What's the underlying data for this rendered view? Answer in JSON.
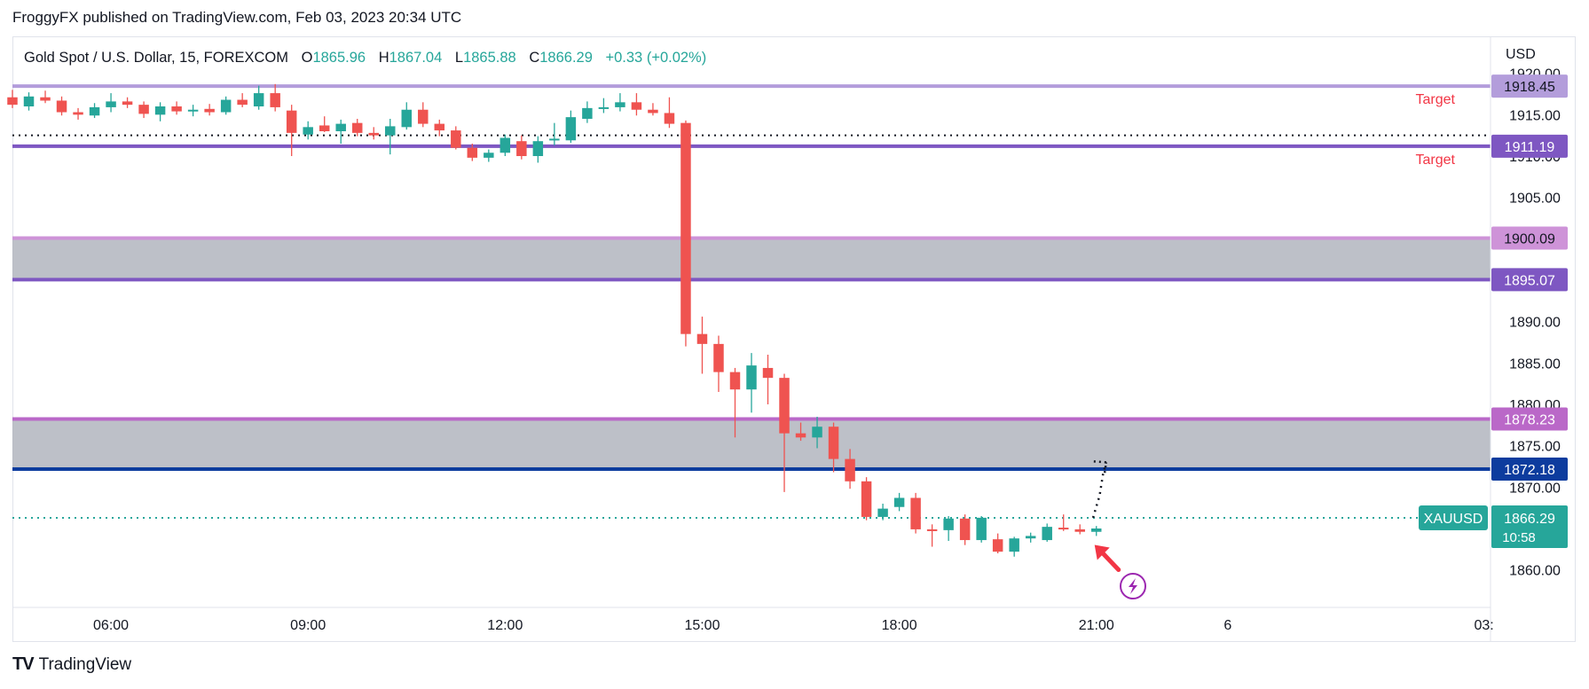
{
  "publisher_line": "FroggyFX published on TradingView.com, Feb 03, 2023 20:34 UTC",
  "brand": {
    "logo_text": "TV",
    "name": "TradingView"
  },
  "colors": {
    "up": "#26a69a",
    "down": "#ef5350",
    "purple_line": "#7e57c2",
    "light_purple_line": "#b39ddb",
    "zone_fill": "#b2b5be",
    "target_text": "#f23645",
    "price_bg": "#26a69a",
    "navy_label": "#1848cc"
  },
  "chart_data": {
    "type": "candlestick",
    "symbol_header": {
      "name": "Gold Spot / U.S. Dollar, 15, FOREXCOM",
      "O_label": "O",
      "O": "1865.96",
      "H_label": "H",
      "H": "1867.04",
      "L_label": "L",
      "L": "1865.88",
      "C_label": "C",
      "C": "1866.29",
      "change": "+0.33 (+0.02%)"
    },
    "currency": "USD",
    "ylim": [
      1856,
      1920.5
    ],
    "xlim": [
      4.5,
      27.0
    ],
    "y_ticks": [
      "1920.00",
      "1915.00",
      "1910.00",
      "1905.00",
      "1900.00",
      "1895.00",
      "1890.00",
      "1885.00",
      "1880.00",
      "1875.00",
      "1870.00",
      "1865.00",
      "1860.00"
    ],
    "x_ticks": [
      {
        "label": "06:00",
        "x": 6.0
      },
      {
        "label": "09:00",
        "x": 9.0
      },
      {
        "label": "12:00",
        "x": 12.0
      },
      {
        "label": "15:00",
        "x": 15.0
      },
      {
        "label": "18:00",
        "x": 18.0
      },
      {
        "label": "21:00",
        "x": 21.0
      },
      {
        "label": "6",
        "x": 23.0
      },
      {
        "label": "03:",
        "x": 26.9
      }
    ],
    "levels": [
      {
        "price": 1918.45,
        "label": "1918.45",
        "color": "#b39ddb",
        "text_color": "#131722",
        "annotation": "Target"
      },
      {
        "price": 1911.19,
        "label": "1911.19",
        "color": "#7e57c2",
        "text_color": "#ffffff",
        "annotation": "Target"
      },
      {
        "price": 1900.09,
        "label": "1900.09",
        "color": "#ce93d8",
        "text_color": "#131722",
        "annotation": ""
      },
      {
        "price": 1895.07,
        "label": "1895.07",
        "color": "#7e57c2",
        "text_color": "#ffffff",
        "annotation": ""
      },
      {
        "price": 1878.23,
        "label": "1878.23",
        "color": "#ba68c8",
        "text_color": "#ffffff",
        "annotation": ""
      },
      {
        "price": 1872.18,
        "label": "1872.18",
        "color": "#0d3c9e",
        "text_color": "#ffffff",
        "annotation": ""
      }
    ],
    "zones": [
      {
        "from": 1895.07,
        "to": 1900.09
      },
      {
        "from": 1872.18,
        "to": 1878.23
      }
    ],
    "dotted_level": 1912.5,
    "current_price": {
      "symbol": "XAUUSD",
      "price": "1866.29",
      "countdown": "10:58",
      "value": 1866.29
    },
    "projection": [
      [
        20.95,
        1866.3
      ],
      [
        21.05,
        1869.0
      ],
      [
        21.1,
        1871.5
      ],
      [
        21.15,
        1873.0
      ]
    ],
    "candles": [
      {
        "x": 4.5,
        "o": 1917.1,
        "h": 1918.0,
        "l": 1915.8,
        "c": 1916.2
      },
      {
        "x": 4.75,
        "o": 1916.0,
        "h": 1917.7,
        "l": 1915.5,
        "c": 1917.2
      },
      {
        "x": 5.0,
        "o": 1917.1,
        "h": 1917.9,
        "l": 1916.4,
        "c": 1916.7
      },
      {
        "x": 5.25,
        "o": 1916.7,
        "h": 1917.2,
        "l": 1914.9,
        "c": 1915.3
      },
      {
        "x": 5.5,
        "o": 1915.3,
        "h": 1915.8,
        "l": 1914.4,
        "c": 1915.0
      },
      {
        "x": 5.75,
        "o": 1914.9,
        "h": 1916.4,
        "l": 1914.6,
        "c": 1915.9
      },
      {
        "x": 6.0,
        "o": 1915.9,
        "h": 1917.6,
        "l": 1915.3,
        "c": 1916.6
      },
      {
        "x": 6.25,
        "o": 1916.6,
        "h": 1917.1,
        "l": 1915.8,
        "c": 1916.2
      },
      {
        "x": 6.5,
        "o": 1916.2,
        "h": 1916.6,
        "l": 1914.6,
        "c": 1915.1
      },
      {
        "x": 6.75,
        "o": 1915.0,
        "h": 1916.5,
        "l": 1914.2,
        "c": 1916.0
      },
      {
        "x": 7.0,
        "o": 1916.0,
        "h": 1916.6,
        "l": 1915.0,
        "c": 1915.4
      },
      {
        "x": 7.25,
        "o": 1915.4,
        "h": 1916.2,
        "l": 1914.8,
        "c": 1915.6
      },
      {
        "x": 7.5,
        "o": 1915.7,
        "h": 1916.3,
        "l": 1914.9,
        "c": 1915.3
      },
      {
        "x": 7.75,
        "o": 1915.3,
        "h": 1917.2,
        "l": 1915.0,
        "c": 1916.8
      },
      {
        "x": 8.0,
        "o": 1916.8,
        "h": 1917.6,
        "l": 1915.9,
        "c": 1916.2
      },
      {
        "x": 8.25,
        "o": 1916.0,
        "h": 1918.5,
        "l": 1915.6,
        "c": 1917.6
      },
      {
        "x": 8.5,
        "o": 1917.6,
        "h": 1918.7,
        "l": 1915.4,
        "c": 1915.9
      },
      {
        "x": 8.75,
        "o": 1915.5,
        "h": 1916.2,
        "l": 1910.0,
        "c": 1912.8
      },
      {
        "x": 9.0,
        "o": 1912.6,
        "h": 1914.2,
        "l": 1912.0,
        "c": 1913.5
      },
      {
        "x": 9.25,
        "o": 1913.7,
        "h": 1914.8,
        "l": 1912.9,
        "c": 1913.0
      },
      {
        "x": 9.5,
        "o": 1913.0,
        "h": 1914.4,
        "l": 1911.5,
        "c": 1913.9
      },
      {
        "x": 9.75,
        "o": 1914.0,
        "h": 1914.5,
        "l": 1912.4,
        "c": 1912.8
      },
      {
        "x": 10.0,
        "o": 1912.8,
        "h": 1913.5,
        "l": 1912.0,
        "c": 1912.5
      },
      {
        "x": 10.25,
        "o": 1912.5,
        "h": 1914.5,
        "l": 1910.2,
        "c": 1913.6
      },
      {
        "x": 10.5,
        "o": 1913.5,
        "h": 1916.5,
        "l": 1913.2,
        "c": 1915.6
      },
      {
        "x": 10.75,
        "o": 1915.6,
        "h": 1916.5,
        "l": 1913.5,
        "c": 1913.9
      },
      {
        "x": 11.0,
        "o": 1913.9,
        "h": 1914.4,
        "l": 1912.4,
        "c": 1913.1
      },
      {
        "x": 11.25,
        "o": 1913.1,
        "h": 1913.6,
        "l": 1910.8,
        "c": 1911.0
      },
      {
        "x": 11.5,
        "o": 1911.0,
        "h": 1911.5,
        "l": 1909.4,
        "c": 1909.8
      },
      {
        "x": 11.75,
        "o": 1909.8,
        "h": 1910.8,
        "l": 1909.3,
        "c": 1910.4
      },
      {
        "x": 12.0,
        "o": 1910.4,
        "h": 1912.6,
        "l": 1910.0,
        "c": 1912.2
      },
      {
        "x": 12.25,
        "o": 1911.8,
        "h": 1912.5,
        "l": 1909.6,
        "c": 1910.0
      },
      {
        "x": 12.5,
        "o": 1910.0,
        "h": 1912.4,
        "l": 1909.2,
        "c": 1911.8
      },
      {
        "x": 12.75,
        "o": 1911.9,
        "h": 1914.0,
        "l": 1911.3,
        "c": 1912.1
      },
      {
        "x": 13.0,
        "o": 1911.9,
        "h": 1915.5,
        "l": 1911.6,
        "c": 1914.7
      },
      {
        "x": 13.25,
        "o": 1914.5,
        "h": 1916.6,
        "l": 1914.0,
        "c": 1915.8
      },
      {
        "x": 13.5,
        "o": 1915.7,
        "h": 1917.0,
        "l": 1915.2,
        "c": 1915.9
      },
      {
        "x": 13.75,
        "o": 1915.9,
        "h": 1917.6,
        "l": 1915.4,
        "c": 1916.5
      },
      {
        "x": 14.0,
        "o": 1916.5,
        "h": 1917.6,
        "l": 1914.9,
        "c": 1915.6
      },
      {
        "x": 14.25,
        "o": 1915.6,
        "h": 1916.4,
        "l": 1914.9,
        "c": 1915.2
      },
      {
        "x": 14.5,
        "o": 1915.2,
        "h": 1917.1,
        "l": 1913.4,
        "c": 1913.9
      },
      {
        "x": 14.75,
        "o": 1914.0,
        "h": 1914.3,
        "l": 1887.0,
        "c": 1888.5
      },
      {
        "x": 15.0,
        "o": 1888.5,
        "h": 1890.6,
        "l": 1883.7,
        "c": 1887.3
      },
      {
        "x": 15.25,
        "o": 1887.3,
        "h": 1888.3,
        "l": 1881.5,
        "c": 1883.9
      },
      {
        "x": 15.5,
        "o": 1883.9,
        "h": 1884.4,
        "l": 1876.0,
        "c": 1881.8
      },
      {
        "x": 15.75,
        "o": 1881.8,
        "h": 1886.2,
        "l": 1879.0,
        "c": 1884.7
      },
      {
        "x": 16.0,
        "o": 1884.4,
        "h": 1886.0,
        "l": 1880.0,
        "c": 1883.2
      },
      {
        "x": 16.25,
        "o": 1883.2,
        "h": 1883.7,
        "l": 1869.4,
        "c": 1876.5
      },
      {
        "x": 16.5,
        "o": 1876.5,
        "h": 1877.8,
        "l": 1875.6,
        "c": 1876.0
      },
      {
        "x": 16.75,
        "o": 1876.0,
        "h": 1878.5,
        "l": 1874.7,
        "c": 1877.3
      },
      {
        "x": 17.0,
        "o": 1877.3,
        "h": 1877.8,
        "l": 1871.8,
        "c": 1873.4
      },
      {
        "x": 17.25,
        "o": 1873.4,
        "h": 1874.6,
        "l": 1869.8,
        "c": 1870.7
      },
      {
        "x": 17.5,
        "o": 1870.7,
        "h": 1871.2,
        "l": 1866.0,
        "c": 1866.4
      },
      {
        "x": 17.75,
        "o": 1866.4,
        "h": 1868.0,
        "l": 1866.0,
        "c": 1867.4
      },
      {
        "x": 18.0,
        "o": 1867.6,
        "h": 1869.3,
        "l": 1867.1,
        "c": 1868.7
      },
      {
        "x": 18.25,
        "o": 1868.7,
        "h": 1869.3,
        "l": 1864.4,
        "c": 1864.9
      },
      {
        "x": 18.5,
        "o": 1864.9,
        "h": 1865.5,
        "l": 1862.8,
        "c": 1864.8
      },
      {
        "x": 18.75,
        "o": 1864.8,
        "h": 1866.5,
        "l": 1863.5,
        "c": 1866.2
      },
      {
        "x": 19.0,
        "o": 1866.2,
        "h": 1866.7,
        "l": 1863.0,
        "c": 1863.6
      },
      {
        "x": 19.25,
        "o": 1863.6,
        "h": 1866.5,
        "l": 1863.3,
        "c": 1866.3
      },
      {
        "x": 19.5,
        "o": 1863.7,
        "h": 1864.4,
        "l": 1862.0,
        "c": 1862.2
      },
      {
        "x": 19.75,
        "o": 1862.2,
        "h": 1864.0,
        "l": 1861.6,
        "c": 1863.8
      },
      {
        "x": 20.0,
        "o": 1863.8,
        "h": 1864.5,
        "l": 1863.3,
        "c": 1864.1
      },
      {
        "x": 20.25,
        "o": 1863.6,
        "h": 1865.6,
        "l": 1863.4,
        "c": 1865.2
      },
      {
        "x": 20.5,
        "o": 1865.1,
        "h": 1866.7,
        "l": 1864.7,
        "c": 1864.9
      },
      {
        "x": 20.75,
        "o": 1864.9,
        "h": 1865.5,
        "l": 1864.3,
        "c": 1864.6
      },
      {
        "x": 21.0,
        "o": 1864.6,
        "h": 1865.3,
        "l": 1864.1,
        "c": 1865.0
      }
    ]
  }
}
